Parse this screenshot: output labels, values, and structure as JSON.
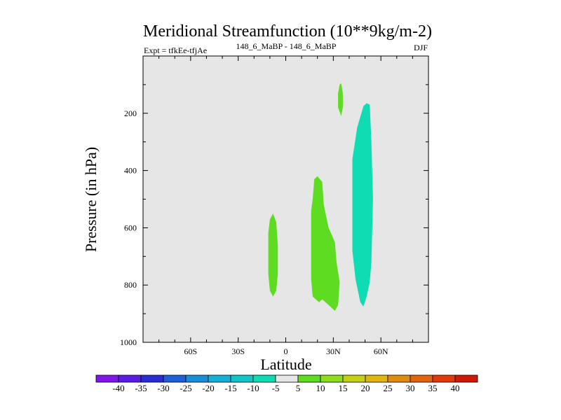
{
  "chart_data": {
    "type": "contour",
    "title": "Meridional Streamfunction (10**9kg/m-2)",
    "experiment_label": "Expt = tfkEe-tfjAe",
    "subtitle": "148_6_MaBP - 148_6_MaBP",
    "season": "DJF",
    "xlabel": "Latitude",
    "ylabel": "Pressure (in hPa)",
    "xlim": [
      -90,
      90
    ],
    "ylim": [
      1000,
      0
    ],
    "y_inverted": true,
    "x_ticks": [
      {
        "value": -60,
        "label": "60S"
      },
      {
        "value": -30,
        "label": "30S"
      },
      {
        "value": 0,
        "label": "0"
      },
      {
        "value": 30,
        "label": "30N"
      },
      {
        "value": 60,
        "label": "60N"
      }
    ],
    "y_ticks": [
      {
        "value": 200,
        "label": "200"
      },
      {
        "value": 400,
        "label": "400"
      },
      {
        "value": 600,
        "label": "600"
      },
      {
        "value": 800,
        "label": "800"
      },
      {
        "value": 1000,
        "label": "1000"
      }
    ],
    "background_color": "#e6e6e6",
    "colorbar": {
      "labels": [
        "-40",
        "-35",
        "-30",
        "-25",
        "-20",
        "-15",
        "-10",
        "-5",
        "5",
        "10",
        "15",
        "20",
        "25",
        "30",
        "35",
        "40"
      ],
      "colors": [
        "#7f17e6",
        "#5a1ee0",
        "#2a2dd2",
        "#1f5fd8",
        "#1a8ed8",
        "#14b0d8",
        "#12c4c8",
        "#10dcb4",
        "#e6e6e6",
        "#5ddc22",
        "#8fdc1a",
        "#c4d012",
        "#e0b60e",
        "#e08c0c",
        "#e0640c",
        "#e03a0a",
        "#cc1a05"
      ]
    },
    "regions": [
      {
        "name": "positive-5-to-10-near-equator",
        "color": "#5ddc22",
        "points": [
          [
            -8,
            550
          ],
          [
            -6,
            580
          ],
          [
            -5,
            660
          ],
          [
            -5,
            760
          ],
          [
            -6,
            820
          ],
          [
            -8,
            840
          ],
          [
            -10,
            820
          ],
          [
            -11,
            760
          ],
          [
            -11,
            620
          ],
          [
            -10,
            570
          ]
        ]
      },
      {
        "name": "positive-5-to-10-subtropics",
        "color": "#5ddc22",
        "points": [
          [
            20,
            420
          ],
          [
            23,
            440
          ],
          [
            24,
            520
          ],
          [
            27,
            600
          ],
          [
            31,
            650
          ],
          [
            32,
            720
          ],
          [
            34,
            790
          ],
          [
            33,
            870
          ],
          [
            31,
            890
          ],
          [
            29,
            880
          ],
          [
            27,
            870
          ],
          [
            23,
            850
          ],
          [
            21,
            860
          ],
          [
            17,
            840
          ],
          [
            16,
            780
          ],
          [
            16,
            540
          ],
          [
            17,
            500
          ],
          [
            18,
            430
          ]
        ]
      },
      {
        "name": "positive-5-to-10-upper-cell",
        "color": "#5ddc22",
        "points": [
          [
            35,
            95
          ],
          [
            36,
            130
          ],
          [
            36,
            180
          ],
          [
            35,
            210
          ],
          [
            33,
            180
          ],
          [
            33,
            130
          ],
          [
            34,
            100
          ]
        ]
      },
      {
        "name": "negative-minus-5-to-minus-10-cell",
        "color": "#10dcb4",
        "points": [
          [
            51,
            165
          ],
          [
            53,
            170
          ],
          [
            54,
            300
          ],
          [
            55,
            500
          ],
          [
            54,
            720
          ],
          [
            53,
            790
          ],
          [
            51,
            840
          ],
          [
            49,
            875
          ],
          [
            47,
            860
          ],
          [
            44,
            780
          ],
          [
            42,
            680
          ],
          [
            42,
            360
          ],
          [
            45,
            250
          ],
          [
            49,
            175
          ]
        ]
      }
    ]
  }
}
